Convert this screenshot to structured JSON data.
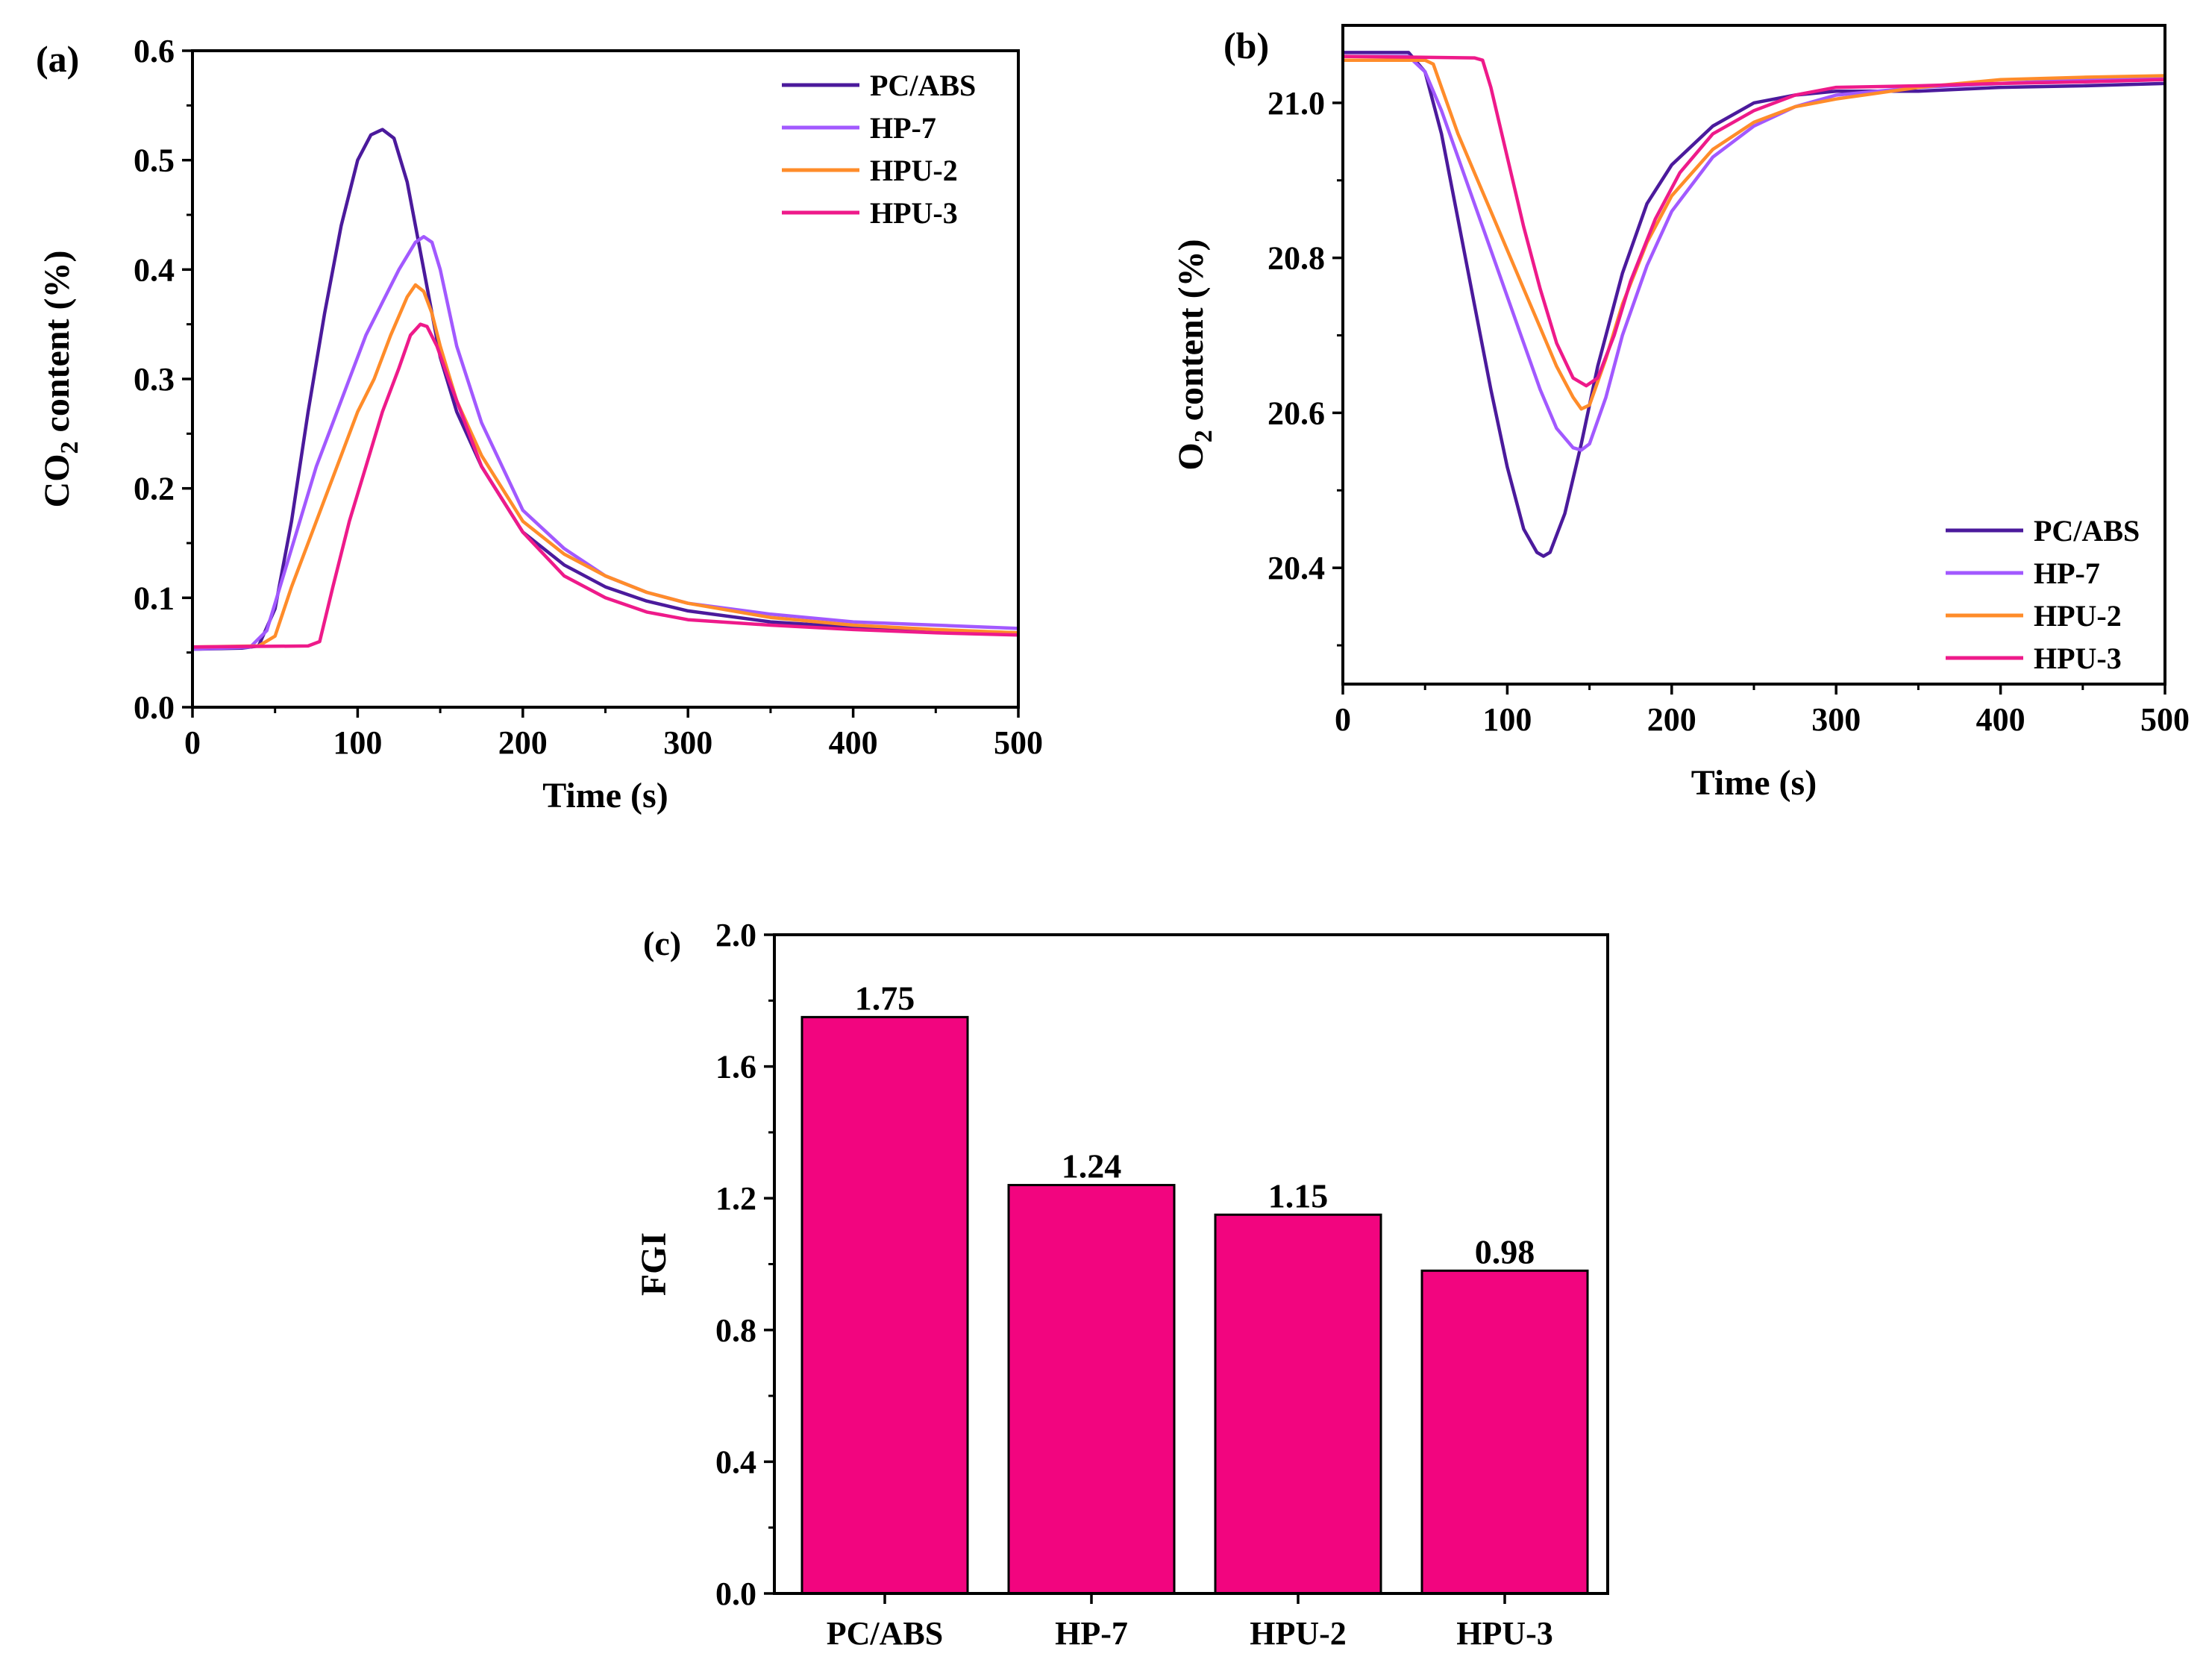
{
  "chart_data": [
    {
      "panel_label": "(a)",
      "type": "line",
      "xlabel": "Time (s)",
      "ylabel_main": "CO",
      "ylabel_sub": "2",
      "ylabel_rest": " content (%)",
      "xlim": [
        0,
        500
      ],
      "ylim": [
        0,
        0.6
      ],
      "xticks": [
        0,
        100,
        200,
        300,
        400,
        500
      ],
      "xtick_labels": [
        "0",
        "100",
        "200",
        "300",
        "400",
        "500"
      ],
      "yticks": [
        0,
        0.1,
        0.2,
        0.3,
        0.4,
        0.5,
        0.6
      ],
      "ytick_labels": [
        "0.0",
        "0.1",
        "0.2",
        "0.3",
        "0.4",
        "0.5",
        "0.6"
      ],
      "grid": false,
      "legend_position": "top-right",
      "series": [
        {
          "name": "PC/ABS",
          "color": "#4b1a9c",
          "x": [
            0,
            30,
            40,
            50,
            60,
            70,
            80,
            90,
            100,
            108,
            115,
            122,
            130,
            140,
            150,
            160,
            175,
            200,
            225,
            250,
            275,
            300,
            350,
            400,
            450,
            500
          ],
          "y": [
            0.053,
            0.054,
            0.056,
            0.09,
            0.17,
            0.27,
            0.36,
            0.44,
            0.5,
            0.523,
            0.528,
            0.52,
            0.48,
            0.4,
            0.32,
            0.27,
            0.22,
            0.16,
            0.13,
            0.11,
            0.097,
            0.088,
            0.078,
            0.073,
            0.07,
            0.068
          ]
        },
        {
          "name": "HP-7",
          "color": "#a259ff",
          "x": [
            0,
            35,
            45,
            55,
            65,
            75,
            85,
            95,
            105,
            115,
            125,
            135,
            140,
            145,
            150,
            160,
            175,
            200,
            225,
            250,
            275,
            300,
            350,
            400,
            450,
            500
          ],
          "y": [
            0.053,
            0.055,
            0.07,
            0.12,
            0.17,
            0.22,
            0.26,
            0.3,
            0.34,
            0.37,
            0.4,
            0.425,
            0.43,
            0.425,
            0.4,
            0.33,
            0.26,
            0.18,
            0.145,
            0.12,
            0.105,
            0.095,
            0.085,
            0.078,
            0.075,
            0.072
          ]
        },
        {
          "name": "HPU-2",
          "color": "#ff8c2a",
          "x": [
            0,
            40,
            50,
            60,
            70,
            80,
            90,
            100,
            110,
            120,
            130,
            135,
            140,
            145,
            150,
            160,
            175,
            200,
            225,
            250,
            275,
            300,
            350,
            400,
            450,
            500
          ],
          "y": [
            0.055,
            0.056,
            0.065,
            0.11,
            0.15,
            0.19,
            0.23,
            0.27,
            0.3,
            0.34,
            0.375,
            0.386,
            0.38,
            0.36,
            0.33,
            0.28,
            0.23,
            0.17,
            0.14,
            0.12,
            0.105,
            0.095,
            0.082,
            0.075,
            0.071,
            0.068
          ]
        },
        {
          "name": "HPU-3",
          "color": "#ee1a8a",
          "x": [
            0,
            70,
            77,
            85,
            95,
            105,
            115,
            125,
            132,
            138,
            142,
            148,
            155,
            165,
            175,
            200,
            225,
            250,
            275,
            300,
            350,
            400,
            450,
            500
          ],
          "y": [
            0.055,
            0.056,
            0.06,
            0.11,
            0.17,
            0.22,
            0.27,
            0.31,
            0.34,
            0.35,
            0.348,
            0.33,
            0.3,
            0.26,
            0.22,
            0.16,
            0.12,
            0.1,
            0.087,
            0.08,
            0.075,
            0.071,
            0.068,
            0.066
          ]
        }
      ]
    },
    {
      "panel_label": "(b)",
      "type": "line",
      "xlabel": "Time (s)",
      "ylabel_main": "O",
      "ylabel_sub": "2",
      "ylabel_rest": " content (%)",
      "xlim": [
        0,
        500
      ],
      "ylim": [
        20.25,
        21.1
      ],
      "xticks": [
        0,
        100,
        200,
        300,
        400,
        500
      ],
      "xtick_labels": [
        "0",
        "100",
        "200",
        "300",
        "400",
        "500"
      ],
      "yticks": [
        20.4,
        20.6,
        20.8,
        21.0
      ],
      "ytick_labels": [
        "20.4",
        "20.6",
        "20.8",
        "21.0"
      ],
      "grid": false,
      "legend_position": "bottom-right",
      "series": [
        {
          "name": "PC/ABS",
          "color": "#4b1a9c",
          "x": [
            0,
            40,
            50,
            60,
            70,
            80,
            90,
            100,
            110,
            118,
            122,
            126,
            135,
            145,
            155,
            170,
            185,
            200,
            225,
            250,
            275,
            300,
            350,
            400,
            450,
            500
          ],
          "y": [
            21.065,
            21.065,
            21.04,
            20.96,
            20.85,
            20.74,
            20.63,
            20.53,
            20.45,
            20.42,
            20.415,
            20.42,
            20.47,
            20.56,
            20.66,
            20.78,
            20.87,
            20.92,
            20.97,
            21.0,
            21.01,
            21.015,
            21.015,
            21.02,
            21.022,
            21.025
          ]
        },
        {
          "name": "HP-7",
          "color": "#a259ff",
          "x": [
            0,
            40,
            50,
            60,
            70,
            80,
            90,
            100,
            110,
            120,
            130,
            140,
            145,
            150,
            160,
            170,
            185,
            200,
            225,
            250,
            275,
            300,
            350,
            400,
            450,
            500
          ],
          "y": [
            21.06,
            21.06,
            21.04,
            20.99,
            20.93,
            20.87,
            20.81,
            20.75,
            20.69,
            20.63,
            20.58,
            20.555,
            20.552,
            20.56,
            20.62,
            20.7,
            20.79,
            20.86,
            20.93,
            20.97,
            20.995,
            21.01,
            21.02,
            21.025,
            21.03,
            21.032
          ]
        },
        {
          "name": "HPU-2",
          "color": "#ff8c2a",
          "x": [
            0,
            50,
            55,
            60,
            70,
            80,
            90,
            100,
            110,
            120,
            130,
            140,
            145,
            150,
            160,
            170,
            185,
            200,
            225,
            250,
            275,
            300,
            350,
            400,
            450,
            500
          ],
          "y": [
            21.055,
            21.055,
            21.05,
            21.02,
            20.96,
            20.91,
            20.86,
            20.81,
            20.76,
            20.71,
            20.66,
            20.62,
            20.605,
            20.61,
            20.67,
            20.74,
            20.82,
            20.88,
            20.94,
            20.975,
            20.995,
            21.005,
            21.02,
            21.03,
            21.033,
            21.035
          ]
        },
        {
          "name": "HPU-3",
          "color": "#ee1a8a",
          "x": [
            0,
            80,
            85,
            90,
            100,
            110,
            120,
            130,
            140,
            148,
            155,
            165,
            175,
            190,
            205,
            225,
            250,
            275,
            300,
            350,
            400,
            450,
            500
          ],
          "y": [
            21.06,
            21.058,
            21.055,
            21.02,
            20.93,
            20.84,
            20.76,
            20.69,
            20.645,
            20.635,
            20.645,
            20.7,
            20.77,
            20.85,
            20.91,
            20.96,
            20.99,
            21.01,
            21.02,
            21.022,
            21.025,
            21.027,
            21.03
          ]
        }
      ]
    },
    {
      "panel_label": "(c)",
      "type": "bar",
      "ylabel": "FGI",
      "ylim": [
        0,
        2.0
      ],
      "yticks": [
        0,
        0.4,
        0.8,
        1.2,
        1.6,
        2.0
      ],
      "ytick_labels": [
        "0.0",
        "0.4",
        "0.8",
        "1.2",
        "1.6",
        "2.0"
      ],
      "categories": [
        "PC/ABS",
        "HP-7",
        "HPU-2",
        "HPU-3"
      ],
      "values": [
        1.75,
        1.24,
        1.15,
        0.98
      ],
      "value_labels": [
        "1.75",
        "1.24",
        "1.15",
        "0.98"
      ],
      "bar_color": "#f2057f",
      "grid": false
    }
  ]
}
